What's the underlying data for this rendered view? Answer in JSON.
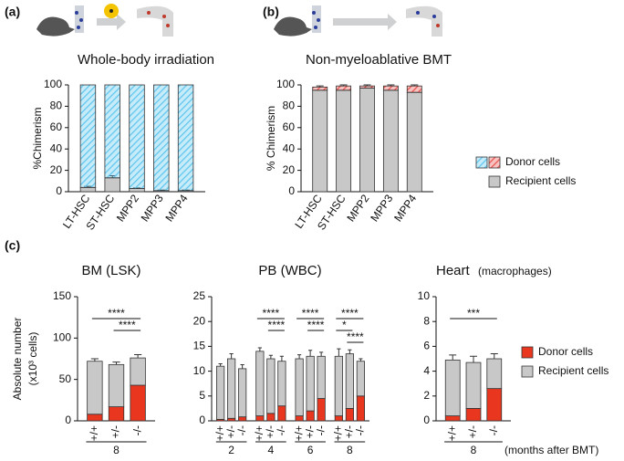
{
  "chart_data": [
    {
      "type": "bar",
      "stacked": true,
      "panel": "(a)",
      "title": "Whole-body irradiation",
      "ylabel": "%Chimerism",
      "categories": [
        "LT-HSC",
        "ST-HSC",
        "MPP2",
        "MPP3",
        "MPP4"
      ],
      "series": [
        {
          "color": "#c8c8c8",
          "values": [
            4,
            13,
            3,
            1,
            1
          ],
          "errors": [
            1,
            2,
            0.5,
            0.5,
            0.5
          ]
        },
        {
          "color": "#5cc4ee",
          "hatch": true,
          "values": [
            96,
            87,
            97,
            99,
            99
          ]
        }
      ],
      "ylim": [
        0,
        100
      ],
      "yticks": [
        0,
        20,
        40,
        60,
        80,
        100
      ]
    },
    {
      "type": "bar",
      "stacked": true,
      "panel": "(b)",
      "title": "Non-myeloablative BMT",
      "ylabel": "% Chimerism",
      "categories": [
        "LT-HSC",
        "ST-HSC",
        "MPP2",
        "MPP3",
        "MPP4"
      ],
      "series": [
        {
          "name": "Recipient cells",
          "color": "#c8c8c8",
          "values": [
            95,
            95,
            97,
            95,
            93
          ]
        },
        {
          "name": "Donor cells",
          "color": "#e8504a",
          "hatch": true,
          "values": [
            3,
            4,
            2,
            4,
            6
          ],
          "errors": [
            1,
            1,
            1,
            1,
            1
          ]
        }
      ],
      "ylim": [
        0,
        100
      ],
      "yticks": [
        0,
        20,
        40,
        60,
        80,
        100
      ]
    },
    {
      "type": "bar",
      "stacked": true,
      "panel": "(c)",
      "title": "BM (LSK)",
      "ylabel": "Absolute number",
      "ylabel_unit": "(x10³ cells)",
      "categories": [
        "+/+",
        "+/-",
        "-/-"
      ],
      "groups": [
        "8"
      ],
      "series": [
        {
          "color": "#e8361f",
          "values": [
            8,
            17,
            43
          ],
          "errors": [
            1,
            2,
            5
          ]
        },
        {
          "color": "#c8c8c8",
          "values": [
            64,
            51,
            33
          ],
          "errors": [
            3,
            3,
            4
          ]
        }
      ],
      "ylim": [
        0,
        150
      ],
      "yticks": [
        0,
        50,
        100,
        150
      ],
      "annotations": [
        {
          "label": "****",
          "between": [
            0,
            2
          ]
        },
        {
          "label": "****",
          "between": [
            1,
            2
          ]
        }
      ]
    },
    {
      "type": "bar",
      "stacked": true,
      "title": "PB (WBC)",
      "categories": [
        "+/+",
        "+/-",
        "-/-",
        "+/+",
        "+/-",
        "-/-",
        "+/+",
        "+/-",
        "-/-",
        "+/+",
        "+/-",
        "-/-"
      ],
      "groups": [
        "2",
        "4",
        "6",
        "8"
      ],
      "series": [
        {
          "color": "#e8361f",
          "values": [
            0.3,
            0.5,
            0.8,
            1,
            1.5,
            3,
            1,
            2,
            4.5,
            1,
            2.5,
            5
          ],
          "errors": [
            0.1,
            0.2,
            0.2,
            0.3,
            0.4,
            0.5,
            0.3,
            0.5,
            0.6,
            0.3,
            0.5,
            0.6
          ]
        },
        {
          "color": "#c8c8c8",
          "values": [
            10.7,
            12,
            9.7,
            13,
            11,
            9,
            11.5,
            11,
            8.5,
            12,
            11,
            7
          ],
          "errors": [
            0.5,
            1,
            0.8,
            0.7,
            0.7,
            1,
            0.8,
            1.2,
            0.8,
            1.5,
            0.8,
            0.5
          ]
        }
      ],
      "ylim": [
        0,
        25
      ],
      "yticks": [
        0,
        5,
        10,
        15,
        20,
        25
      ],
      "annotations": [
        {
          "label": "****",
          "between": [
            3,
            5
          ]
        },
        {
          "label": "****",
          "between": [
            4,
            5
          ]
        },
        {
          "label": "****",
          "between": [
            6,
            8
          ]
        },
        {
          "label": "****",
          "between": [
            7,
            8
          ]
        },
        {
          "label": "****",
          "between": [
            9,
            11
          ]
        },
        {
          "label": "*",
          "between": [
            9,
            10
          ]
        },
        {
          "label": "****",
          "between": [
            10,
            11
          ]
        }
      ]
    },
    {
      "type": "bar",
      "stacked": true,
      "title": "Heart",
      "subtitle": "(macrophages)",
      "xlabel": "(months after BMT)",
      "categories": [
        "+/+",
        "+/-",
        "-/-"
      ],
      "groups": [
        "8"
      ],
      "series": [
        {
          "name": "Donor cells",
          "color": "#e8361f",
          "values": [
            0.4,
            1,
            2.6
          ],
          "errors": [
            0.1,
            0.2,
            0.4
          ]
        },
        {
          "name": "Recipient cells",
          "color": "#c8c8c8",
          "values": [
            4.5,
            3.7,
            2.4
          ],
          "errors": [
            0.4,
            0.5,
            0.4
          ]
        }
      ],
      "ylim": [
        0,
        10
      ],
      "yticks": [
        0,
        2,
        4,
        6,
        8,
        10
      ],
      "annotations": [
        {
          "label": "***",
          "between": [
            0,
            2
          ]
        }
      ]
    }
  ]
}
